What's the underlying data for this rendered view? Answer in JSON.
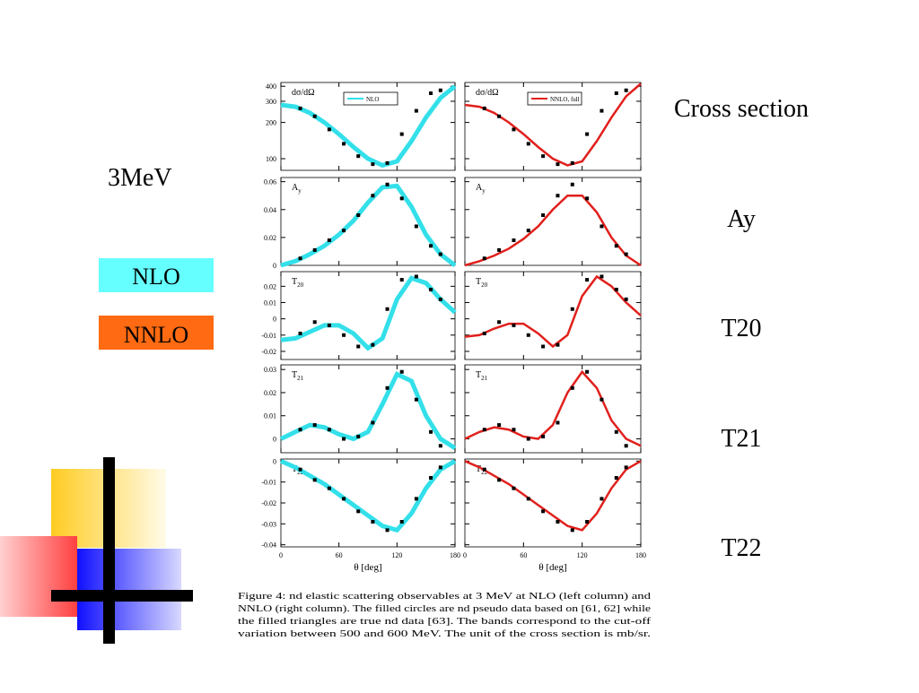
{
  "slide": {
    "energy": "3MeV",
    "labels": [
      "NLO",
      "NNLO"
    ],
    "row_labels": [
      "Cross section",
      "Ay",
      "T20",
      "T21",
      "T22"
    ],
    "caption": [
      "Figure 4:   nd elastic scattering observables at 3 MeV at NLO (left column) and",
      "NNLO (right column). The filled circles are nd pseudo data based on [61, 62] while",
      "the filled triangles are true nd data [63].  The bands correspond to the cut-off",
      "variation between 500 and 600 MeV. The unit of the cross section is mb/sr."
    ]
  },
  "chart_data": [
    {
      "type": "line",
      "title": "dσ/dΩ",
      "log_y": true,
      "ylim": [
        80,
        430
      ],
      "yticks": [
        100,
        200,
        300,
        400
      ],
      "xlim": [
        0,
        180
      ],
      "xticks": [
        0,
        60,
        120,
        180
      ],
      "ytick_labels": true,
      "xtick_labels": false,
      "x": [
        0,
        15,
        30,
        45,
        60,
        75,
        90,
        105,
        120,
        135,
        150,
        165,
        180
      ],
      "series": [
        {
          "name": "NLO",
          "color": "#33e0ea",
          "values": [
            280,
            270,
            240,
            200,
            160,
            125,
            100,
            88,
            95,
            140,
            220,
            320,
            400
          ]
        }
      ],
      "points": {
        "x": [
          20,
          35,
          50,
          65,
          80,
          95,
          110,
          125,
          140,
          155,
          165
        ],
        "y": [
          262,
          225,
          175,
          133,
          105,
          90,
          92,
          160,
          250,
          350,
          370
        ]
      }
    },
    {
      "type": "line",
      "title": "dσ/dΩ",
      "log_y": true,
      "ylim": [
        80,
        430
      ],
      "yticks": [
        100,
        200,
        300,
        400
      ],
      "xlim": [
        0,
        180
      ],
      "xticks": [
        0,
        60,
        120,
        180
      ],
      "ytick_labels": false,
      "xtick_labels": false,
      "x": [
        0,
        15,
        30,
        45,
        60,
        75,
        90,
        105,
        120,
        135,
        150,
        165,
        180
      ],
      "series": [
        {
          "name": "NNLO, full",
          "color": "#e0201c",
          "values": [
            280,
            270,
            240,
            200,
            160,
            125,
            100,
            88,
            95,
            140,
            220,
            330,
            420
          ]
        }
      ],
      "points": {
        "x": [
          20,
          35,
          50,
          65,
          80,
          95,
          110,
          125,
          140,
          155,
          165
        ],
        "y": [
          262,
          225,
          175,
          133,
          105,
          90,
          92,
          160,
          250,
          350,
          370
        ]
      }
    },
    {
      "type": "line",
      "title": "A",
      "title_sub": "y",
      "ylim": [
        0,
        0.063
      ],
      "yticks": [
        0,
        0.02,
        0.04,
        0.06
      ],
      "xlim": [
        0,
        180
      ],
      "xticks": [
        0,
        60,
        120,
        180
      ],
      "ytick_labels": true,
      "xtick_labels": false,
      "x": [
        0,
        15,
        30,
        45,
        60,
        75,
        90,
        105,
        120,
        135,
        150,
        165,
        180
      ],
      "series": [
        {
          "color": "#33e0ea",
          "values": [
            0,
            0.003,
            0.008,
            0.014,
            0.022,
            0.032,
            0.045,
            0.056,
            0.057,
            0.042,
            0.022,
            0.008,
            0
          ]
        }
      ],
      "points": {
        "x": [
          20,
          35,
          50,
          65,
          80,
          95,
          110,
          125,
          140,
          155,
          165
        ],
        "y": [
          0.005,
          0.011,
          0.018,
          0.025,
          0.036,
          0.05,
          0.058,
          0.048,
          0.028,
          0.014,
          0.008
        ]
      }
    },
    {
      "type": "line",
      "title": "A",
      "title_sub": "y",
      "ylim": [
        0,
        0.063
      ],
      "yticks": [
        0,
        0.02,
        0.04,
        0.06
      ],
      "xlim": [
        0,
        180
      ],
      "xticks": [
        0,
        60,
        120,
        180
      ],
      "ytick_labels": false,
      "xtick_labels": false,
      "x": [
        0,
        15,
        30,
        45,
        60,
        75,
        90,
        105,
        120,
        135,
        150,
        165,
        180
      ],
      "series": [
        {
          "color": "#e0201c",
          "values": [
            0,
            0.003,
            0.007,
            0.012,
            0.019,
            0.028,
            0.04,
            0.05,
            0.05,
            0.038,
            0.02,
            0.007,
            0
          ]
        }
      ],
      "points": {
        "x": [
          20,
          35,
          50,
          65,
          80,
          95,
          110,
          125,
          140,
          155,
          165
        ],
        "y": [
          0.005,
          0.011,
          0.018,
          0.025,
          0.036,
          0.05,
          0.058,
          0.048,
          0.028,
          0.014,
          0.008
        ]
      }
    },
    {
      "type": "line",
      "title": "T",
      "title_sub": "20",
      "ylim": [
        -0.025,
        0.029
      ],
      "yticks": [
        -0.02,
        -0.01,
        0,
        0.01,
        0.02
      ],
      "xlim": [
        0,
        180
      ],
      "xticks": [
        0,
        60,
        120,
        180
      ],
      "ytick_labels": true,
      "xtick_labels": false,
      "x": [
        0,
        15,
        30,
        45,
        60,
        75,
        90,
        105,
        120,
        135,
        150,
        165,
        180
      ],
      "series": [
        {
          "color": "#33e0ea",
          "values": [
            -0.013,
            -0.012,
            -0.008,
            -0.004,
            -0.004,
            -0.009,
            -0.018,
            -0.012,
            0.012,
            0.025,
            0.022,
            0.012,
            0.004
          ]
        }
      ],
      "points": {
        "x": [
          20,
          35,
          50,
          65,
          80,
          95,
          110,
          125,
          140,
          155,
          165
        ],
        "y": [
          -0.009,
          -0.002,
          -0.004,
          -0.01,
          -0.017,
          -0.016,
          0.006,
          0.024,
          0.026,
          0.018,
          0.012
        ]
      }
    },
    {
      "type": "line",
      "title": "T",
      "title_sub": "20",
      "ylim": [
        -0.025,
        0.029
      ],
      "yticks": [
        -0.02,
        -0.01,
        0,
        0.01,
        0.02
      ],
      "xlim": [
        0,
        180
      ],
      "xticks": [
        0,
        60,
        120,
        180
      ],
      "ytick_labels": false,
      "xtick_labels": false,
      "x": [
        0,
        15,
        30,
        45,
        60,
        75,
        90,
        105,
        120,
        135,
        150,
        165,
        180
      ],
      "series": [
        {
          "color": "#e0201c",
          "values": [
            -0.011,
            -0.01,
            -0.006,
            -0.003,
            -0.003,
            -0.009,
            -0.017,
            -0.01,
            0.014,
            0.026,
            0.02,
            0.01,
            0.002
          ]
        }
      ],
      "points": {
        "x": [
          20,
          35,
          50,
          65,
          80,
          95,
          110,
          125,
          140,
          155,
          165
        ],
        "y": [
          -0.009,
          -0.002,
          -0.004,
          -0.01,
          -0.017,
          -0.016,
          0.006,
          0.024,
          0.026,
          0.018,
          0.012
        ]
      }
    },
    {
      "type": "line",
      "title": "T",
      "title_sub": "21",
      "ylim": [
        -0.006,
        0.032
      ],
      "yticks": [
        0,
        0.01,
        0.02,
        0.03
      ],
      "xlim": [
        0,
        180
      ],
      "xticks": [
        0,
        60,
        120,
        180
      ],
      "ytick_labels": true,
      "xtick_labels": false,
      "x": [
        0,
        15,
        30,
        45,
        60,
        75,
        90,
        105,
        120,
        135,
        150,
        165,
        180
      ],
      "series": [
        {
          "color": "#33e0ea",
          "values": [
            0,
            0.003,
            0.006,
            0.005,
            0.002,
            0,
            0.003,
            0.015,
            0.028,
            0.025,
            0.01,
            0,
            -0.004
          ]
        }
      ],
      "points": {
        "x": [
          20,
          35,
          50,
          65,
          80,
          95,
          110,
          125,
          140,
          155,
          165
        ],
        "y": [
          0.004,
          0.006,
          0.004,
          0,
          0.001,
          0.007,
          0.022,
          0.029,
          0.017,
          0.003,
          -0.003
        ]
      }
    },
    {
      "type": "line",
      "title": "T",
      "title_sub": "21",
      "ylim": [
        -0.006,
        0.032
      ],
      "yticks": [
        0,
        0.01,
        0.02,
        0.03
      ],
      "xlim": [
        0,
        180
      ],
      "xticks": [
        0,
        60,
        120,
        180
      ],
      "ytick_labels": false,
      "xtick_labels": false,
      "x": [
        0,
        15,
        30,
        45,
        60,
        75,
        90,
        105,
        120,
        135,
        150,
        165,
        180
      ],
      "series": [
        {
          "color": "#e0201c",
          "values": [
            0,
            0.003,
            0.005,
            0.004,
            0.001,
            0,
            0.006,
            0.02,
            0.029,
            0.022,
            0.008,
            0,
            -0.003
          ]
        }
      ],
      "points": {
        "x": [
          20,
          35,
          50,
          65,
          80,
          95,
          110,
          125,
          140,
          155,
          165
        ],
        "y": [
          0.004,
          0.006,
          0.004,
          0,
          0.001,
          0.007,
          0.022,
          0.029,
          0.017,
          0.003,
          -0.003
        ]
      }
    },
    {
      "type": "line",
      "title": "T",
      "title_sub": "22",
      "ylim": [
        -0.041,
        0.001
      ],
      "yticks": [
        0,
        -0.01,
        -0.02,
        -0.03,
        -0.04
      ],
      "xlim": [
        0,
        180
      ],
      "xticks": [
        0,
        60,
        120,
        180
      ],
      "ytick_labels": true,
      "xtick_labels": true,
      "xlabel": "θ [deg]",
      "x": [
        0,
        15,
        30,
        45,
        60,
        75,
        90,
        105,
        120,
        135,
        150,
        165,
        180
      ],
      "series": [
        {
          "color": "#33e0ea",
          "values": [
            0,
            -0.003,
            -0.007,
            -0.011,
            -0.016,
            -0.021,
            -0.026,
            -0.031,
            -0.033,
            -0.025,
            -0.013,
            -0.004,
            0
          ]
        }
      ],
      "points": {
        "x": [
          20,
          35,
          50,
          65,
          80,
          95,
          110,
          125,
          140,
          155,
          165
        ],
        "y": [
          -0.004,
          -0.009,
          -0.013,
          -0.018,
          -0.024,
          -0.029,
          -0.033,
          -0.029,
          -0.018,
          -0.008,
          -0.003
        ]
      }
    },
    {
      "type": "line",
      "title": "T",
      "title_sub": "22",
      "ylim": [
        -0.041,
        0.001
      ],
      "yticks": [
        0,
        -0.01,
        -0.02,
        -0.03,
        -0.04
      ],
      "xlim": [
        0,
        180
      ],
      "xticks": [
        0,
        60,
        120,
        180
      ],
      "ytick_labels": false,
      "xtick_labels": true,
      "xlabel": "θ [deg]",
      "x": [
        0,
        15,
        30,
        45,
        60,
        75,
        90,
        105,
        120,
        135,
        150,
        165,
        180
      ],
      "series": [
        {
          "color": "#e0201c",
          "values": [
            0,
            -0.003,
            -0.007,
            -0.011,
            -0.016,
            -0.021,
            -0.026,
            -0.031,
            -0.033,
            -0.025,
            -0.013,
            -0.004,
            0
          ]
        }
      ],
      "points": {
        "x": [
          20,
          35,
          50,
          65,
          80,
          95,
          110,
          125,
          140,
          155,
          165
        ],
        "y": [
          -0.004,
          -0.009,
          -0.013,
          -0.018,
          -0.024,
          -0.029,
          -0.033,
          -0.029,
          -0.018,
          -0.008,
          -0.003
        ]
      }
    }
  ]
}
